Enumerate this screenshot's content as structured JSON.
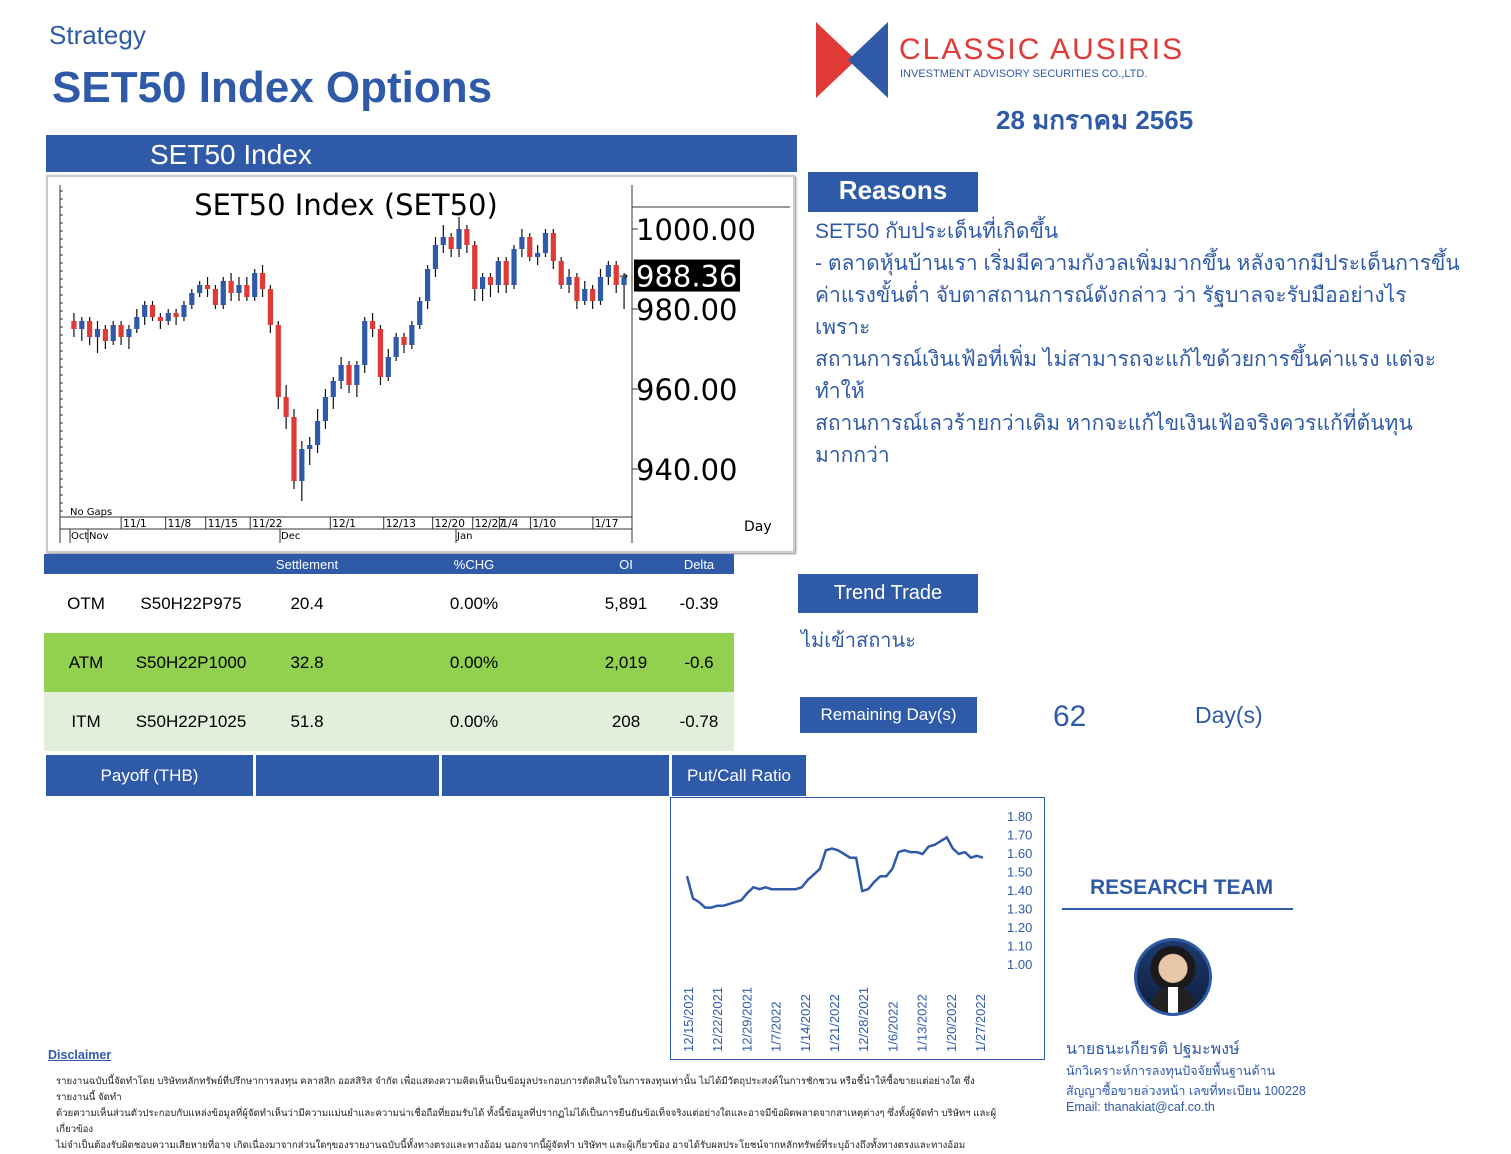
{
  "header": {
    "category": "Strategy",
    "title": "SET50 Index Options",
    "date": "28 มกราคม 2565"
  },
  "logo": {
    "name": "CLASSIC AUSIRIS",
    "subtitle": "INVESTMENT ADVISORY SECURITIES CO.,LTD.",
    "colors": {
      "red": "#e03a36",
      "blue": "#2f5aa8"
    }
  },
  "set50_section": {
    "heading": "SET50 Index"
  },
  "reasons": {
    "heading": "Reasons",
    "lines": [
      "SET50 กับประเด็นที่เกิดขึ้น",
      "- ตลาดหุ้นบ้านเรา เริ่มมีความกังวลเพิ่มมากขึ้น หลังจากมีประเด็นการขึ้น",
      "ค่าแรงขั้นต่ำ จับตาสถานการณ์ดังกล่าว ว่า รัฐบาลจะรับมืออย่างไร เพราะ",
      "สถานการณ์เงินเฟ้อที่เพิ่ม ไม่สามารถจะแก้ไขด้วยการขึ้นค่าแรง แต่จะทำให้",
      "สถานการณ์เลวร้ายกว่าเดิม หากจะแก้ไขเงินเฟ้อจริงควรแก้ที่ต้นทุนมากกว่า"
    ]
  },
  "options_table": {
    "headers": [
      "",
      "",
      "Settlement",
      "%CHG",
      "OI",
      "Delta"
    ],
    "rows": [
      {
        "moneyness": "OTM",
        "series": "S50H22P975",
        "settlement": "20.4",
        "chg": "0.00%",
        "oi": "5,891",
        "delta": "-0.39"
      },
      {
        "moneyness": "ATM",
        "series": "S50H22P1000",
        "settlement": "32.8",
        "chg": "0.00%",
        "oi": "2,019",
        "delta": "-0.6"
      },
      {
        "moneyness": "ITM",
        "series": "S50H22P1025",
        "settlement": "51.8",
        "chg": "0.00%",
        "oi": "208",
        "delta": "-0.78"
      }
    ]
  },
  "trend_trade": {
    "label": "Trend Trade",
    "value": "ไม่เข้าสถานะ"
  },
  "remaining": {
    "label": "Remaining Day(s)",
    "value": "62",
    "unit": "Day(s)"
  },
  "tabs": {
    "payoff": "Payoff (THB)",
    "pcr": "Put/Call Ratio"
  },
  "research": {
    "heading": "RESEARCH TEAM",
    "name": "นายธนะเกียรติ ปฐมะพงษ์",
    "role": "นักวิเคราะห์การลงทุนปัจจัยพื้นฐานด้าน",
    "license": "สัญญาซื้อขายล่วงหน้า เลขที่ทะเบียน 100228",
    "email": "Email: thanakiat@caf.co.th"
  },
  "disclaimer": {
    "heading": "Disclaimer",
    "lines": [
      "รายงานฉบับนี้จัดทำโดย บริษัทหลักทรัพย์ที่ปรึกษาการลงทุน คลาสสิก ออสสิริส จำกัด เพื่อแสดงความคิดเห็นเป็นข้อมูลประกอบการตัดสินใจในการลงทุนเท่านั้น ไม่ได้มีวัตถุประสงค์ในการชักชวน หรือชี้นำให้ซื้อขายแต่อย่างใด ซึ่งรายงานนี้ จัดทำ",
      "ด้วยความเห็นส่วนตัวประกอบกับแหล่งข้อมูลที่ผู้จัดทำเห็นว่ามีความแม่นยำและความน่าเชื่อถือที่ยอมรับได้ ทั้งนี้ข้อมูลที่ปรากฏไม่ได้เป็นการยืนยันข้อเท็จจริงแต่อย่างใดและอาจมีข้อผิดพลาดจากสาเหตุต่างๆ ซึ่งทั้งผู้จัดทำ บริษัทฯ และผู้เกี่ยวข้อง",
      "ไม่จำเป็นต้องรับผิดชอบความเสียหายที่อาจ เกิดเนื่องมาจากส่วนใดๆของรายงานฉบับนี้ทั้งทางตรงและทางอ้อม นอกจากนี้ผู้จัดทำ บริษัทฯ และผู้เกี่ยวข้อง อาจได้รับผลประโยชน์จากหลักทรัพย์ที่ระบุอ้างถึงทั้งทางตรงและทางอ้อม"
    ]
  },
  "chart_data": [
    {
      "type": "candlestick",
      "title": "SET50  Index  (SET50)",
      "ylim": [
        928,
        1008
      ],
      "yticks": [
        "1000.00",
        "980.00",
        "960.00",
        "940.00"
      ],
      "last_value": "988.36",
      "xlabel": "Day",
      "note": "No  Gaps",
      "x_ticks": [
        "11/1",
        "11/8",
        "11/15",
        "11/22",
        "12/1",
        "12/13",
        "12/20",
        "12/27",
        "1/4",
        "1/10",
        "1/17"
      ],
      "x_months": [
        "Oct",
        "Nov",
        "Dec",
        "Jan"
      ],
      "colors": {
        "up": "#2f5aa8",
        "down": "#e03a36"
      },
      "candles": [
        [
          977,
          975,
          979,
          973
        ],
        [
          975,
          977,
          978,
          972
        ],
        [
          977,
          973,
          978,
          971
        ],
        [
          973,
          975,
          977,
          969
        ],
        [
          975,
          972,
          976,
          970
        ],
        [
          972,
          976,
          977,
          971
        ],
        [
          976,
          973,
          977,
          971
        ],
        [
          973,
          975,
          976,
          970
        ],
        [
          975,
          978,
          980,
          974
        ],
        [
          978,
          981,
          982,
          976
        ],
        [
          981,
          978,
          982,
          977
        ],
        [
          978,
          977,
          979,
          975
        ],
        [
          977,
          979,
          980,
          976
        ],
        [
          979,
          978,
          980,
          976
        ],
        [
          978,
          981,
          982,
          977
        ],
        [
          981,
          984,
          985,
          980
        ],
        [
          984,
          986,
          987,
          983
        ],
        [
          986,
          985,
          988,
          983
        ],
        [
          985,
          981,
          986,
          980
        ],
        [
          981,
          987,
          988,
          980
        ],
        [
          987,
          984,
          989,
          982
        ],
        [
          984,
          986,
          988,
          982
        ],
        [
          986,
          983,
          988,
          982
        ],
        [
          983,
          989,
          990,
          982
        ],
        [
          989,
          985,
          991,
          983
        ],
        [
          985,
          976,
          986,
          974
        ],
        [
          976,
          958,
          977,
          955
        ],
        [
          958,
          953,
          961,
          950
        ],
        [
          953,
          937,
          955,
          935
        ],
        [
          937,
          945,
          947,
          932
        ],
        [
          945,
          946,
          948,
          941
        ],
        [
          946,
          952,
          955,
          944
        ],
        [
          952,
          958,
          960,
          950
        ],
        [
          958,
          962,
          963,
          955
        ],
        [
          962,
          966,
          968,
          960
        ],
        [
          966,
          961,
          967,
          959
        ],
        [
          961,
          966,
          967,
          958
        ],
        [
          966,
          977,
          978,
          964
        ],
        [
          977,
          975,
          979,
          973
        ],
        [
          975,
          963,
          976,
          961
        ],
        [
          963,
          968,
          970,
          962
        ],
        [
          968,
          973,
          974,
          967
        ],
        [
          973,
          971,
          974,
          969
        ],
        [
          971,
          976,
          977,
          970
        ],
        [
          976,
          982,
          983,
          975
        ],
        [
          982,
          990,
          991,
          980
        ],
        [
          990,
          996,
          998,
          988
        ],
        [
          996,
          998,
          1001,
          994
        ],
        [
          998,
          995,
          999,
          993
        ],
        [
          995,
          1000,
          1003,
          993
        ],
        [
          1000,
          996,
          1001,
          994
        ],
        [
          996,
          985,
          997,
          982
        ],
        [
          985,
          988,
          989,
          982
        ],
        [
          988,
          986,
          989,
          983
        ],
        [
          986,
          992,
          993,
          984
        ],
        [
          992,
          986,
          993,
          984
        ],
        [
          986,
          995,
          996,
          985
        ],
        [
          995,
          998,
          1000,
          993
        ],
        [
          998,
          993,
          999,
          992
        ],
        [
          993,
          994,
          996,
          991
        ],
        [
          994,
          999,
          1000,
          993
        ],
        [
          999,
          992,
          1000,
          990
        ],
        [
          992,
          986,
          993,
          985
        ],
        [
          986,
          988,
          990,
          984
        ],
        [
          988,
          982,
          989,
          980
        ],
        [
          982,
          985,
          987,
          981
        ],
        [
          985,
          982,
          986,
          980
        ],
        [
          982,
          988,
          990,
          981
        ],
        [
          988,
          991,
          992,
          986
        ],
        [
          991,
          986,
          992,
          984
        ],
        [
          986,
          988,
          989,
          980
        ]
      ]
    },
    {
      "type": "line",
      "title": "",
      "ylim": [
        1.0,
        1.8
      ],
      "yticks": [
        "1.80",
        "1.70",
        "1.60",
        "1.50",
        "1.40",
        "1.30",
        "1.20",
        "1.10",
        "1.00"
      ],
      "x_ticks": [
        "12/15/2021",
        "12/22/2021",
        "12/29/2021",
        "1/7/2022",
        "1/14/2022",
        "1/21/2022",
        "12/28/2021",
        "1/6/2022",
        "1/13/2022",
        "1/20/2022",
        "1/27/2022"
      ],
      "color": "#2f5aa8",
      "values": [
        1.48,
        1.36,
        1.34,
        1.31,
        1.31,
        1.32,
        1.32,
        1.33,
        1.34,
        1.35,
        1.39,
        1.42,
        1.41,
        1.42,
        1.41,
        1.41,
        1.41,
        1.41,
        1.41,
        1.42,
        1.46,
        1.49,
        1.52,
        1.62,
        1.63,
        1.62,
        1.6,
        1.58,
        1.58,
        1.4,
        1.41,
        1.45,
        1.48,
        1.48,
        1.52,
        1.61,
        1.62,
        1.61,
        1.61,
        1.6,
        1.64,
        1.65,
        1.67,
        1.69,
        1.63,
        1.6,
        1.61,
        1.58,
        1.59,
        1.58
      ]
    }
  ]
}
